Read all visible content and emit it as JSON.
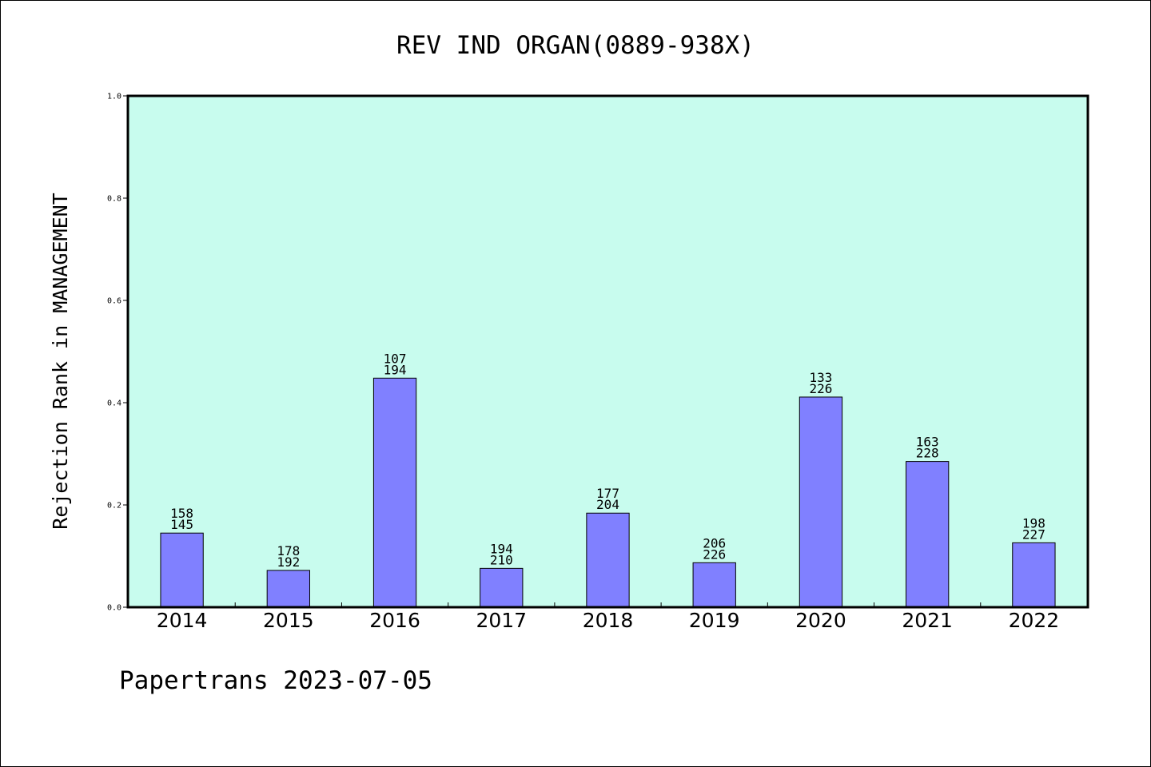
{
  "chart_data": {
    "type": "bar",
    "title": "REV IND ORGAN(0889-938X)",
    "xlabel": "",
    "ylabel": "Rejection Rank in MANAGEMENT",
    "ylim": [
      0,
      1.0
    ],
    "yticks": [
      "0.0",
      "0.2",
      "0.4",
      "0.6",
      "0.8",
      "1.0"
    ],
    "categories": [
      "2014",
      "2015",
      "2016",
      "2017",
      "2018",
      "2019",
      "2020",
      "2021",
      "2022"
    ],
    "values": [
      0.145,
      0.072,
      0.448,
      0.076,
      0.184,
      0.087,
      0.411,
      0.285,
      0.126
    ],
    "bar_labels": [
      [
        "158",
        "145"
      ],
      [
        "178",
        "192"
      ],
      [
        "107",
        "194"
      ],
      [
        "194",
        "210"
      ],
      [
        "177",
        "204"
      ],
      [
        "206",
        "226"
      ],
      [
        "133",
        "226"
      ],
      [
        "163",
        "228"
      ],
      [
        "198",
        "227"
      ]
    ],
    "grid": false,
    "legend": "none",
    "colors": {
      "plot_background": "#c8fcee",
      "bar_fill": "#8080ff",
      "bar_edge": "#000000"
    }
  },
  "footer": {
    "text": "Papertrans 2023-07-05"
  }
}
